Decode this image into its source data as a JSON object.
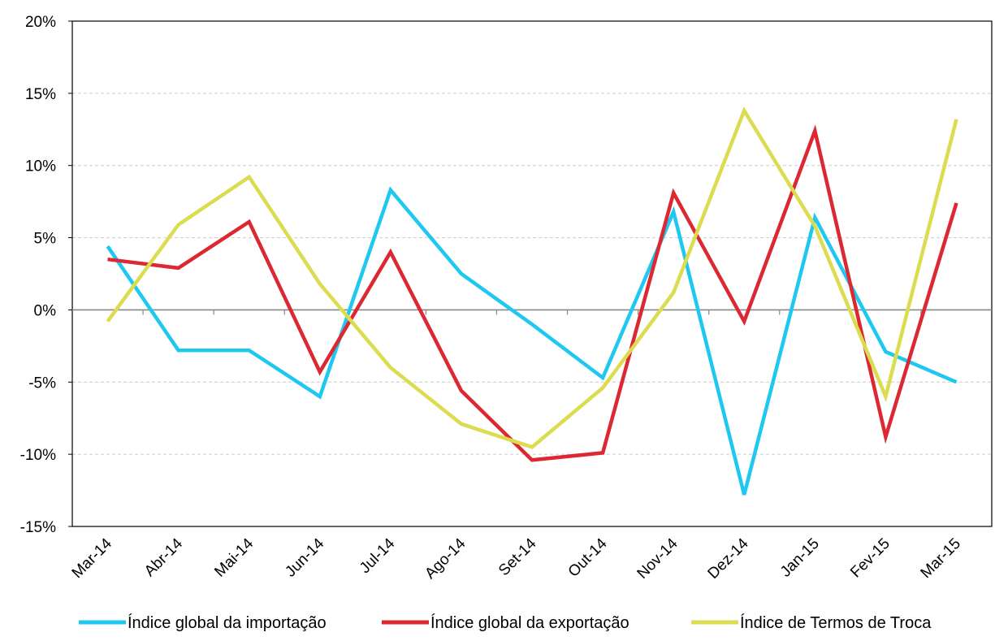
{
  "chart_data": {
    "type": "line",
    "categories": [
      "Mar-14",
      "Abr-14",
      "Mai-14",
      "Jun-14",
      "Jul-14",
      "Ago-14",
      "Set-14",
      "Out-14",
      "Nov-14",
      "Dez-14",
      "Jan-15",
      "Fev-15",
      "Mar-15"
    ],
    "series": [
      {
        "name": "Índice global da importação",
        "color": "#1EC8F0",
        "values": [
          4.4,
          -2.8,
          -2.8,
          -6.0,
          8.3,
          2.5,
          -1.0,
          -4.7,
          6.8,
          -12.8,
          6.4,
          -2.9,
          -5.0
        ]
      },
      {
        "name": "Índice global da exportação",
        "color": "#DC2832",
        "values": [
          3.5,
          2.9,
          6.1,
          -4.3,
          4.0,
          -5.6,
          -10.4,
          -9.9,
          8.1,
          -0.8,
          12.4,
          -8.8,
          7.4
        ]
      },
      {
        "name": "Índice de Termos de Troca",
        "color": "#DCDC50",
        "values": [
          -0.8,
          5.9,
          9.2,
          1.8,
          -4.0,
          -7.9,
          -9.5,
          -5.4,
          1.2,
          13.8,
          5.8,
          -6.0,
          13.2
        ]
      }
    ],
    "y_ticks": [
      "20%",
      "15%",
      "10%",
      "5%",
      "0%",
      "-5%",
      "-10%",
      "-15%"
    ],
    "ylim": [
      -15,
      20
    ],
    "title": "",
    "xlabel": "",
    "ylabel": "",
    "grid": true,
    "legend_position": "bottom"
  }
}
